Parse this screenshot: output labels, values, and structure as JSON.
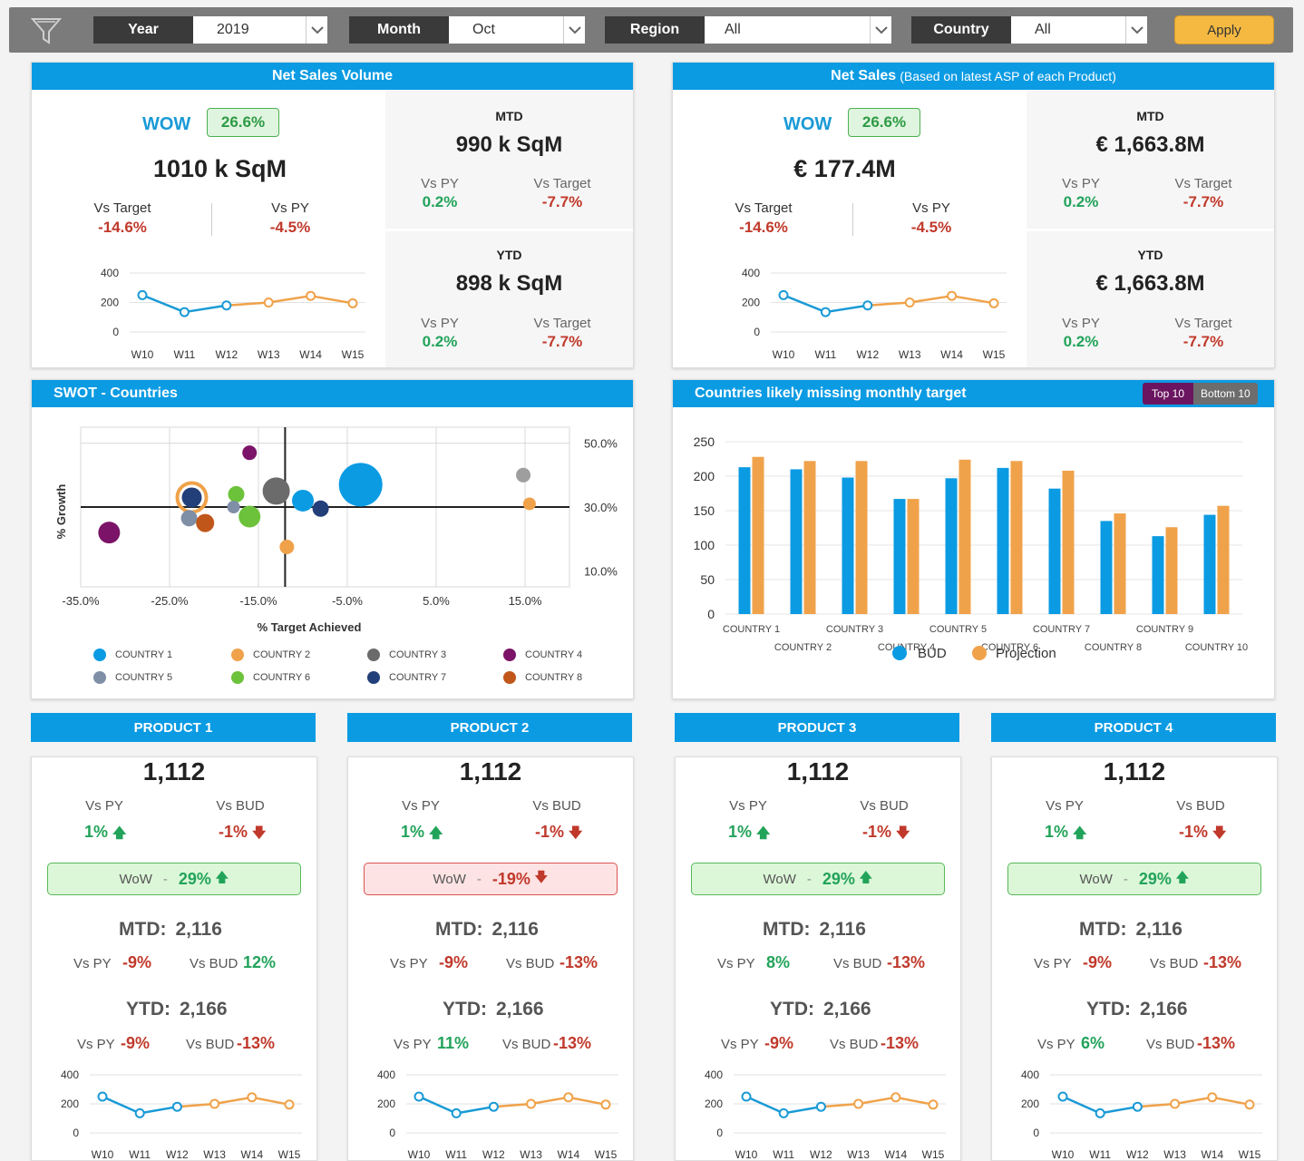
{
  "filters": {
    "year": {
      "label": "Year",
      "value": "2019"
    },
    "month": {
      "label": "Month",
      "value": "Oct"
    },
    "region": {
      "label": "Region",
      "value": "All"
    },
    "country": {
      "label": "Country",
      "value": "All"
    },
    "apply_label": "Apply"
  },
  "net_sales_volume": {
    "title": "Net Sales Volume",
    "wow_label": "WOW",
    "wow_value": "26.6%",
    "main_value": "1010 k SqM",
    "vs_target_label": "Vs Target",
    "vs_target": "-14.6%",
    "vs_py_label": "Vs PY",
    "vs_py": "-4.5%",
    "mtd": {
      "title": "MTD",
      "value": "990 k SqM",
      "vs_py_label": "Vs PY",
      "vs_py": "0.2%",
      "vs_target_label": "Vs Target",
      "vs_target": "-7.7%"
    },
    "ytd": {
      "title": "YTD",
      "value": "898 k SqM",
      "vs_py_label": "Vs PY",
      "vs_py": "0.2%",
      "vs_target_label": "Vs Target",
      "vs_target": "-7.7%"
    },
    "trend": {
      "weeks": [
        "W10",
        "W11",
        "W12",
        "W13",
        "W14",
        "W15"
      ],
      "values": [
        250,
        135,
        180,
        200,
        245,
        195
      ],
      "yticks": [
        "400",
        "200",
        "0"
      ]
    }
  },
  "net_sales": {
    "title": "Net Sales",
    "subtitle": "(Based on latest ASP of each Product)",
    "wow_label": "WOW",
    "wow_value": "26.6%",
    "main_value": "€ 177.4M",
    "vs_target_label": "Vs Target",
    "vs_target": "-14.6%",
    "vs_py_label": "Vs PY",
    "vs_py": "-4.5%",
    "mtd": {
      "title": "MTD",
      "value": "€ 1,663.8M",
      "vs_py_label": "Vs PY",
      "vs_py": "0.2%",
      "vs_target_label": "Vs Target",
      "vs_target": "-7.7%"
    },
    "ytd": {
      "title": "YTD",
      "value": "€ 1,663.8M",
      "vs_py_label": "Vs PY",
      "vs_py": "0.2%",
      "vs_target_label": "Vs Target",
      "vs_target": "-7.7%"
    },
    "trend": {
      "weeks": [
        "W10",
        "W11",
        "W12",
        "W13",
        "W14",
        "W15"
      ],
      "values": [
        250,
        135,
        180,
        200,
        245,
        195
      ],
      "yticks": [
        "400",
        "200",
        "0"
      ]
    }
  },
  "swot": {
    "title": "SWOT - Countries",
    "xlabel": "% Target Achieved",
    "ylabel": "% Growth",
    "xticks": [
      "-35.0%",
      "-25.0%",
      "-15.0%",
      "-5.0%",
      "5.0%",
      "15.0%"
    ],
    "yticks": [
      "50.0%",
      "30.0%",
      "10.0%"
    ],
    "legend": [
      {
        "name": "COUNTRY 1",
        "color": "#0b9be3"
      },
      {
        "name": "COUNTRY 2",
        "color": "#f0a24a"
      },
      {
        "name": "COUNTRY 3",
        "color": "#6b6b6b"
      },
      {
        "name": "COUNTRY 4",
        "color": "#7b1468"
      },
      {
        "name": "COUNTRY 5",
        "color": "#7f8fa6"
      },
      {
        "name": "COUNTRY 6",
        "color": "#6cc23a"
      },
      {
        "name": "COUNTRY 7",
        "color": "#233f7a"
      },
      {
        "name": "COUNTRY 8",
        "color": "#c0561a"
      }
    ]
  },
  "chart_data": [
    {
      "type": "scatter",
      "title": "SWOT - Countries",
      "xlabel": "% Target Achieved",
      "ylabel": "% Growth",
      "xlim": [
        -35,
        20
      ],
      "ylim": [
        5,
        55
      ],
      "points": [
        {
          "x": -3.5,
          "y": 37,
          "r": 24,
          "color": "#0b9be3"
        },
        {
          "x": -22.5,
          "y": 33,
          "r": 16,
          "color": "#f0a24a"
        },
        {
          "x": -22.5,
          "y": 33,
          "r": 11,
          "color": "#233f7a"
        },
        {
          "x": -16,
          "y": 47,
          "r": 8,
          "color": "#7b1468"
        },
        {
          "x": -17.5,
          "y": 34,
          "r": 9,
          "color": "#6cc23a"
        },
        {
          "x": -13,
          "y": 35,
          "r": 15,
          "color": "#6b6b6b"
        },
        {
          "x": -10,
          "y": 32,
          "r": 12,
          "color": "#0b9be3"
        },
        {
          "x": -8,
          "y": 29.5,
          "r": 9,
          "color": "#233f7a"
        },
        {
          "x": -17.8,
          "y": 30,
          "r": 7,
          "color": "#7f8fa6"
        },
        {
          "x": -16,
          "y": 27,
          "r": 12,
          "color": "#6cc23a"
        },
        {
          "x": -22.8,
          "y": 26.5,
          "r": 9,
          "color": "#7f8fa6"
        },
        {
          "x": -21,
          "y": 25,
          "r": 10,
          "color": "#c0561a"
        },
        {
          "x": -31.8,
          "y": 22,
          "r": 12,
          "color": "#7b1468"
        },
        {
          "x": -11.8,
          "y": 17.5,
          "r": 8,
          "color": "#f0a24a"
        },
        {
          "x": 14.8,
          "y": 40,
          "r": 8,
          "color": "#9e9e9e"
        },
        {
          "x": 15.5,
          "y": 31,
          "r": 7,
          "color": "#f0a24a"
        }
      ]
    },
    {
      "type": "bar",
      "title": "Countries likely missing monthly target",
      "categories": [
        "COUNTRY 1",
        "COUNTRY 2",
        "COUNTRY 3",
        "COUNTRY 4",
        "COUNTRY 5",
        "COUNTRY 6",
        "COUNTRY 7",
        "COUNTRY 8",
        "COUNTRY 9",
        "COUNTRY 10"
      ],
      "series": [
        {
          "name": "BUD",
          "values": [
            213,
            210,
            198,
            167,
            197,
            212,
            182,
            135,
            113,
            144
          ]
        },
        {
          "name": "Projection",
          "values": [
            228,
            222,
            222,
            167,
            224,
            222,
            208,
            146,
            126,
            157
          ]
        }
      ],
      "ylim": [
        0,
        250
      ],
      "yticks": [
        "250",
        "200",
        "150",
        "100",
        "50",
        "0"
      ]
    }
  ],
  "missing_target": {
    "title": "Countries likely missing monthly target",
    "toggle_top": "Top 10",
    "toggle_bottom": "Bottom 10",
    "legend_bud": "BUD",
    "legend_proj": "Projection",
    "colors": {
      "bud": "#0b9be3",
      "projection": "#f0a24a"
    }
  },
  "products": [
    {
      "title": "PRODUCT 1",
      "value": "1,112",
      "vs_py_label": "Vs PY",
      "vs_py": "1%",
      "vs_py_dir": "up",
      "vs_bud_label": "Vs BUD",
      "vs_bud": "-1%",
      "vs_bud_dir": "down",
      "wow_label": "WoW",
      "wow_sep": "-",
      "wow_value": "29%",
      "wow_dir": "up",
      "mtd_label": "MTD:",
      "mtd_value": "2,116",
      "mtd_vs_py": "-9%",
      "mtd_vs_py_dir": "down",
      "mtd_vs_bud": "12%",
      "mtd_vs_bud_dir": "up",
      "ytd_label": "YTD:",
      "ytd_value": "2,166",
      "ytd_vs_py": "-9%",
      "ytd_vs_py_dir": "down",
      "ytd_vs_bud": "-13%",
      "ytd_vs_bud_dir": "down"
    },
    {
      "title": "PRODUCT 2",
      "value": "1,112",
      "vs_py_label": "Vs PY",
      "vs_py": "1%",
      "vs_py_dir": "up",
      "vs_bud_label": "Vs BUD",
      "vs_bud": "-1%",
      "vs_bud_dir": "down",
      "wow_label": "WoW",
      "wow_sep": "-",
      "wow_value": "-19%",
      "wow_dir": "down",
      "mtd_label": "MTD:",
      "mtd_value": "2,116",
      "mtd_vs_py": "-9%",
      "mtd_vs_py_dir": "down",
      "mtd_vs_bud": "-13%",
      "mtd_vs_bud_dir": "down",
      "ytd_label": "YTD:",
      "ytd_value": "2,166",
      "ytd_vs_py": "11%",
      "ytd_vs_py_dir": "up",
      "ytd_vs_bud": "-13%",
      "ytd_vs_bud_dir": "down"
    },
    {
      "title": "PRODUCT 3",
      "value": "1,112",
      "vs_py_label": "Vs PY",
      "vs_py": "1%",
      "vs_py_dir": "up",
      "vs_bud_label": "Vs BUD",
      "vs_bud": "-1%",
      "vs_bud_dir": "down",
      "wow_label": "WoW",
      "wow_sep": "-",
      "wow_value": "29%",
      "wow_dir": "up",
      "mtd_label": "MTD:",
      "mtd_value": "2,116",
      "mtd_vs_py": "8%",
      "mtd_vs_py_dir": "up",
      "mtd_vs_bud": "-13%",
      "mtd_vs_bud_dir": "down",
      "ytd_label": "YTD:",
      "ytd_value": "2,166",
      "ytd_vs_py": "-9%",
      "ytd_vs_py_dir": "down",
      "ytd_vs_bud": "-13%",
      "ytd_vs_bud_dir": "down"
    },
    {
      "title": "PRODUCT 4",
      "value": "1,112",
      "vs_py_label": "Vs PY",
      "vs_py": "1%",
      "vs_py_dir": "up",
      "vs_bud_label": "Vs BUD",
      "vs_bud": "-1%",
      "vs_bud_dir": "down",
      "wow_label": "WoW",
      "wow_sep": "-",
      "wow_value": "29%",
      "wow_dir": "up",
      "mtd_label": "MTD:",
      "mtd_value": "2,116",
      "mtd_vs_py": "-9%",
      "mtd_vs_py_dir": "down",
      "mtd_vs_bud": "-13%",
      "mtd_vs_bud_dir": "down",
      "ytd_label": "YTD:",
      "ytd_value": "2,166",
      "ytd_vs_py": "6%",
      "ytd_vs_py_dir": "up",
      "ytd_vs_bud": "-13%",
      "ytd_vs_bud_dir": "down"
    }
  ],
  "product_trend": {
    "weeks": [
      "W10",
      "W11",
      "W12",
      "W13",
      "W14",
      "W15"
    ],
    "values": [
      250,
      135,
      180,
      200,
      245,
      195
    ],
    "yticks": [
      "400",
      "200",
      "0"
    ],
    "colors": {
      "actual": "#1a9ad6",
      "forecast": "#f0a24a"
    }
  }
}
